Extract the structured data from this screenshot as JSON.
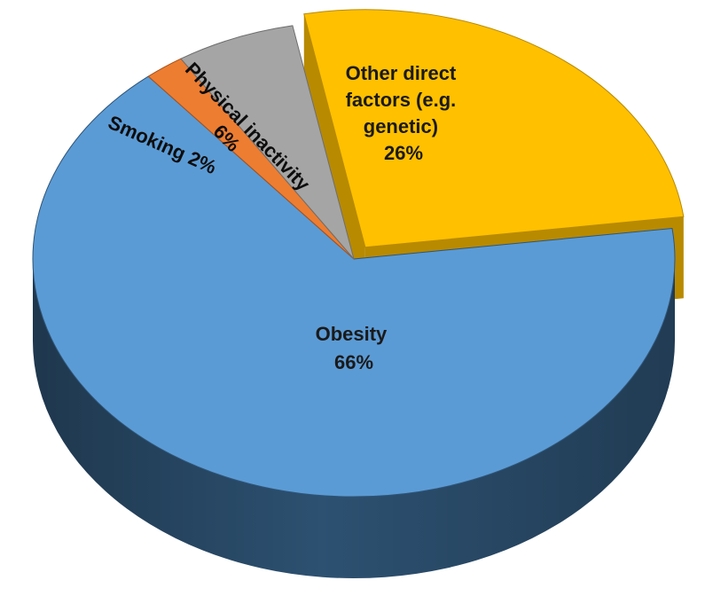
{
  "chart_data": {
    "type": "pie",
    "title": "",
    "slices": [
      {
        "label_lines": [
          "Other direct",
          "factors (e.g.",
          "genetic)",
          "26%"
        ],
        "label": "Other direct factors (e.g. genetic)",
        "value": 26,
        "color": "#FFC000",
        "side_color": "#B88A00",
        "exploded": true
      },
      {
        "label_lines": [
          "Obesity",
          "66%"
        ],
        "label": "Obesity",
        "value": 66,
        "color": "#5B9BD5",
        "side_color": "#2F5577",
        "exploded": false
      },
      {
        "label_lines": [
          "Smoking 2%"
        ],
        "label": "Smoking",
        "value": 2,
        "color": "#ED7D31",
        "side_color": "#A5521C",
        "exploded": false
      },
      {
        "label_lines": [
          "Physical inactivity",
          "6%"
        ],
        "label": "Physical inactivity",
        "value": 6,
        "color": "#A5A5A5",
        "side_color": "#6E6E6E",
        "exploded": false
      }
    ]
  }
}
